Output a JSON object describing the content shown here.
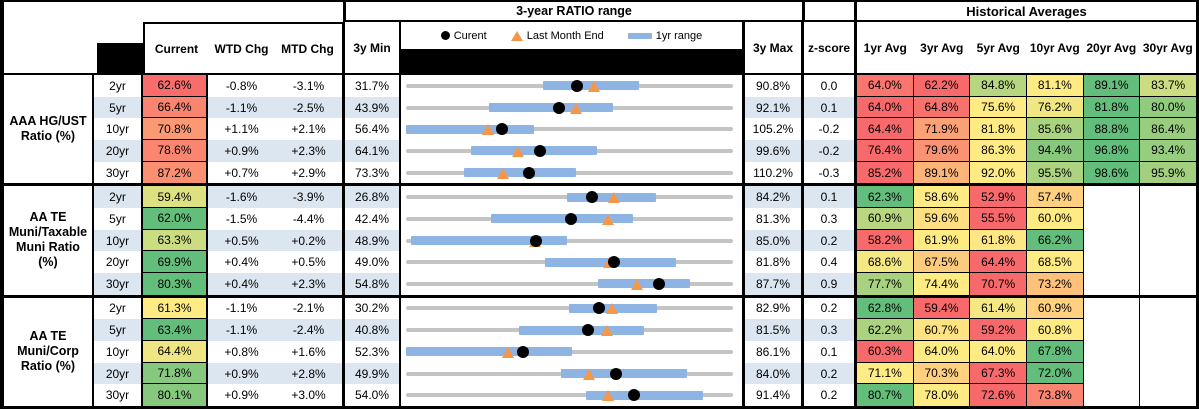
{
  "header": {
    "range_title": "3-year RATIO range",
    "historical_title": "Historical Averages",
    "columns": {
      "current": "Current",
      "wtd": "WTD Chg",
      "mtd": "MTD Chg",
      "min3y": "3y Min",
      "max3y": "3y Max",
      "zscore": "z-score"
    },
    "avg_columns": [
      "1yr Avg",
      "3yr Avg",
      "5yr Avg",
      "10yr Avg",
      "20yr Avg",
      "30yr Avg"
    ],
    "legend": {
      "current": "Curent",
      "last_month": "Last Month End",
      "range_1yr": "1yr range"
    }
  },
  "colors": {
    "band_blue": "#DCE6F1",
    "bar_blue": "#8DB4E2",
    "line_gray": "#C4C4C4",
    "marker_orange": "#F79646",
    "marker_black": "#000000",
    "scale_red": "#F8696B",
    "scale_yellow": "#FFEB84",
    "scale_green": "#63BE7B"
  },
  "chart_data": {
    "type": "table",
    "embedded_plot": "dot-range (gray 3y span, blue 1yr range bar, black current dot, orange last-month triangle)",
    "units": "percent",
    "groups": [
      {
        "label": "AAA HG/UST\nRatio (%)",
        "rows": [
          {
            "tenor": "2yr",
            "current": 62.6,
            "wtd_chg": -0.8,
            "mtd_chg": -3.1,
            "min_3y": 31.7,
            "max_3y": 90.8,
            "z_score": 0.0,
            "last_month_end": 65.7,
            "range_1yr": [
              56.4,
              73.8
            ],
            "avgs": [
              64.0,
              62.2,
              84.8,
              81.1,
              89.1,
              83.7
            ]
          },
          {
            "tenor": "5yr",
            "current": 66.4,
            "wtd_chg": -1.1,
            "mtd_chg": -2.5,
            "min_3y": 43.9,
            "max_3y": 92.1,
            "z_score": 0.1,
            "last_month_end": 68.9,
            "range_1yr": [
              56.2,
              74.4
            ],
            "avgs": [
              64.0,
              64.8,
              75.6,
              76.2,
              81.8,
              80.0
            ]
          },
          {
            "tenor": "10yr",
            "current": 70.8,
            "wtd_chg": 1.1,
            "mtd_chg": 2.1,
            "min_3y": 56.4,
            "max_3y": 105.2,
            "z_score": -0.2,
            "last_month_end": 68.7,
            "range_1yr": [
              56.4,
              75.5
            ],
            "avgs": [
              64.4,
              71.9,
              81.8,
              85.6,
              88.8,
              86.4
            ]
          },
          {
            "tenor": "20yr",
            "current": 78.6,
            "wtd_chg": 0.9,
            "mtd_chg": 2.3,
            "min_3y": 64.1,
            "max_3y": 99.6,
            "z_score": -0.2,
            "last_month_end": 76.3,
            "range_1yr": [
              71.2,
              84.8
            ],
            "avgs": [
              76.4,
              79.6,
              86.3,
              94.4,
              96.8,
              93.4
            ]
          },
          {
            "tenor": "30yr",
            "current": 87.2,
            "wtd_chg": 0.7,
            "mtd_chg": 2.9,
            "min_3y": 73.3,
            "max_3y": 110.2,
            "z_score": -0.3,
            "last_month_end": 84.3,
            "range_1yr": [
              79.9,
              92.5
            ],
            "avgs": [
              85.2,
              89.1,
              92.0,
              95.5,
              98.6,
              95.9
            ]
          }
        ]
      },
      {
        "label": "AA TE\nMuni/Taxable\nMuni Ratio\n(%)",
        "rows": [
          {
            "tenor": "2yr",
            "current": 59.4,
            "wtd_chg": -1.6,
            "mtd_chg": -3.9,
            "min_3y": 26.8,
            "max_3y": 84.2,
            "z_score": 0.1,
            "last_month_end": 63.3,
            "range_1yr": [
              55.1,
              70.6
            ],
            "avgs": [
              62.3,
              58.6,
              52.9,
              57.4,
              null,
              null
            ]
          },
          {
            "tenor": "5yr",
            "current": 62.0,
            "wtd_chg": -1.5,
            "mtd_chg": -4.4,
            "min_3y": 42.4,
            "max_3y": 81.3,
            "z_score": 0.3,
            "last_month_end": 66.4,
            "range_1yr": [
              52.5,
              69.4
            ],
            "avgs": [
              60.9,
              59.6,
              55.5,
              60.0,
              null,
              null
            ]
          },
          {
            "tenor": "10yr",
            "current": 63.3,
            "wtd_chg": 0.5,
            "mtd_chg": 0.2,
            "min_3y": 48.9,
            "max_3y": 85.0,
            "z_score": 0.2,
            "last_month_end": 63.1,
            "range_1yr": [
              49.5,
              66.7
            ],
            "avgs": [
              58.2,
              61.9,
              61.8,
              66.2,
              null,
              null
            ]
          },
          {
            "tenor": "20yr",
            "current": 69.9,
            "wtd_chg": 0.4,
            "mtd_chg": 0.5,
            "min_3y": 49.0,
            "max_3y": 81.8,
            "z_score": 0.4,
            "last_month_end": 69.4,
            "range_1yr": [
              62.9,
              76.1
            ],
            "avgs": [
              68.6,
              67.5,
              64.4,
              68.5,
              null,
              null
            ]
          },
          {
            "tenor": "30yr",
            "current": 80.3,
            "wtd_chg": 0.4,
            "mtd_chg": 2.3,
            "min_3y": 54.8,
            "max_3y": 87.7,
            "z_score": 0.9,
            "last_month_end": 78.0,
            "range_1yr": [
              74.1,
              83.4
            ],
            "avgs": [
              77.7,
              74.4,
              70.7,
              73.2,
              null,
              null
            ]
          }
        ]
      },
      {
        "label": "AA TE\nMuni/Corp\nRatio (%)",
        "rows": [
          {
            "tenor": "2yr",
            "current": 61.3,
            "wtd_chg": -1.1,
            "mtd_chg": -2.1,
            "min_3y": 30.2,
            "max_3y": 82.9,
            "z_score": 0.2,
            "last_month_end": 63.4,
            "range_1yr": [
              56.4,
              70.6
            ],
            "avgs": [
              62.8,
              59.4,
              61.4,
              60.9,
              null,
              null
            ]
          },
          {
            "tenor": "5yr",
            "current": 63.4,
            "wtd_chg": -1.1,
            "mtd_chg": -2.4,
            "min_3y": 40.8,
            "max_3y": 81.5,
            "z_score": 0.3,
            "last_month_end": 65.8,
            "range_1yr": [
              54.9,
              70.4
            ],
            "avgs": [
              62.2,
              60.7,
              59.2,
              60.8,
              null,
              null
            ]
          },
          {
            "tenor": "10yr",
            "current": 64.4,
            "wtd_chg": 0.8,
            "mtd_chg": 1.6,
            "min_3y": 52.3,
            "max_3y": 86.1,
            "z_score": 0.1,
            "last_month_end": 62.8,
            "range_1yr": [
              52.3,
              69.5
            ],
            "avgs": [
              60.3,
              64.0,
              64.0,
              67.8,
              null,
              null
            ]
          },
          {
            "tenor": "20yr",
            "current": 71.8,
            "wtd_chg": 0.9,
            "mtd_chg": 2.8,
            "min_3y": 49.9,
            "max_3y": 84.0,
            "z_score": 0.2,
            "last_month_end": 69.0,
            "range_1yr": [
              66.1,
              79.2
            ],
            "avgs": [
              71.1,
              70.3,
              67.3,
              72.0,
              null,
              null
            ]
          },
          {
            "tenor": "30yr",
            "current": 80.1,
            "wtd_chg": 0.9,
            "mtd_chg": 3.0,
            "min_3y": 54.0,
            "max_3y": 91.4,
            "z_score": 0.2,
            "last_month_end": 77.1,
            "range_1yr": [
              74.6,
              88.0
            ],
            "avgs": [
              80.7,
              78.0,
              72.6,
              73.8,
              null,
              null
            ]
          }
        ]
      }
    ]
  }
}
